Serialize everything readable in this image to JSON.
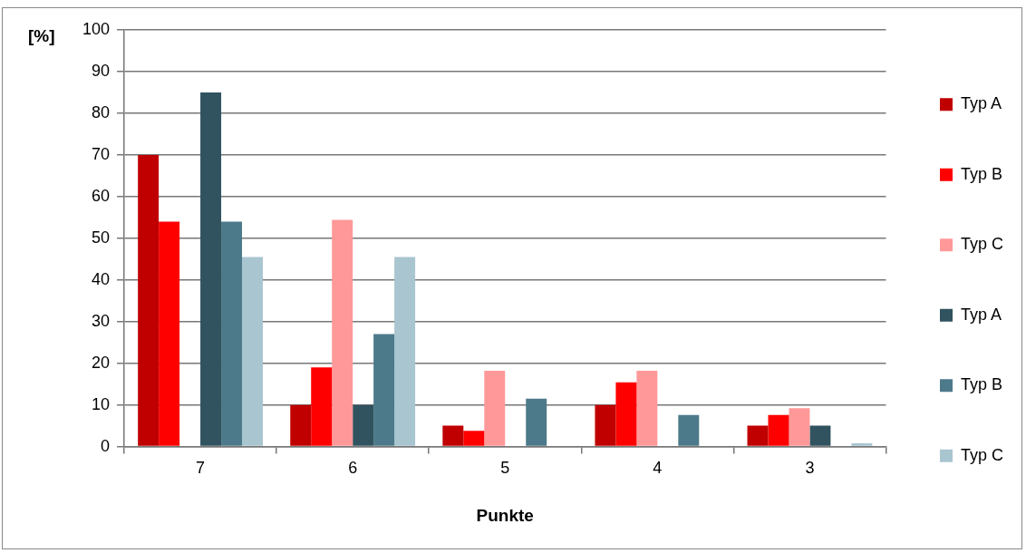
{
  "chart_data": {
    "type": "bar",
    "xlabel": "Punkte",
    "ylabel": "[%]",
    "categories": [
      "7",
      "6",
      "5",
      "4",
      "3"
    ],
    "series": [
      {
        "name": "Typ A",
        "color": "#c00000",
        "values": [
          70,
          10,
          5,
          10,
          5
        ]
      },
      {
        "name": "Typ B",
        "color": "#ff0000",
        "values": [
          54,
          19,
          3.8,
          15.4,
          7.6
        ]
      },
      {
        "name": "Typ C",
        "color": "#ff9999",
        "values": [
          0,
          54.4,
          18.2,
          18.2,
          9.2
        ]
      },
      {
        "name": "Typ A",
        "color": "#31525f",
        "values": [
          85,
          10,
          0,
          0,
          5
        ]
      },
      {
        "name": "Typ B",
        "color": "#4d7a8a",
        "values": [
          54,
          27,
          11.5,
          7.6,
          0
        ]
      },
      {
        "name": "Typ C",
        "color": "#a8c5d0",
        "values": [
          45.5,
          45.5,
          0,
          0,
          0.8
        ]
      }
    ],
    "ylim": [
      0,
      100
    ],
    "yticks": [
      0,
      10,
      20,
      30,
      40,
      50,
      60,
      70,
      80,
      90,
      100
    ],
    "grid": "y",
    "legend": "right"
  }
}
